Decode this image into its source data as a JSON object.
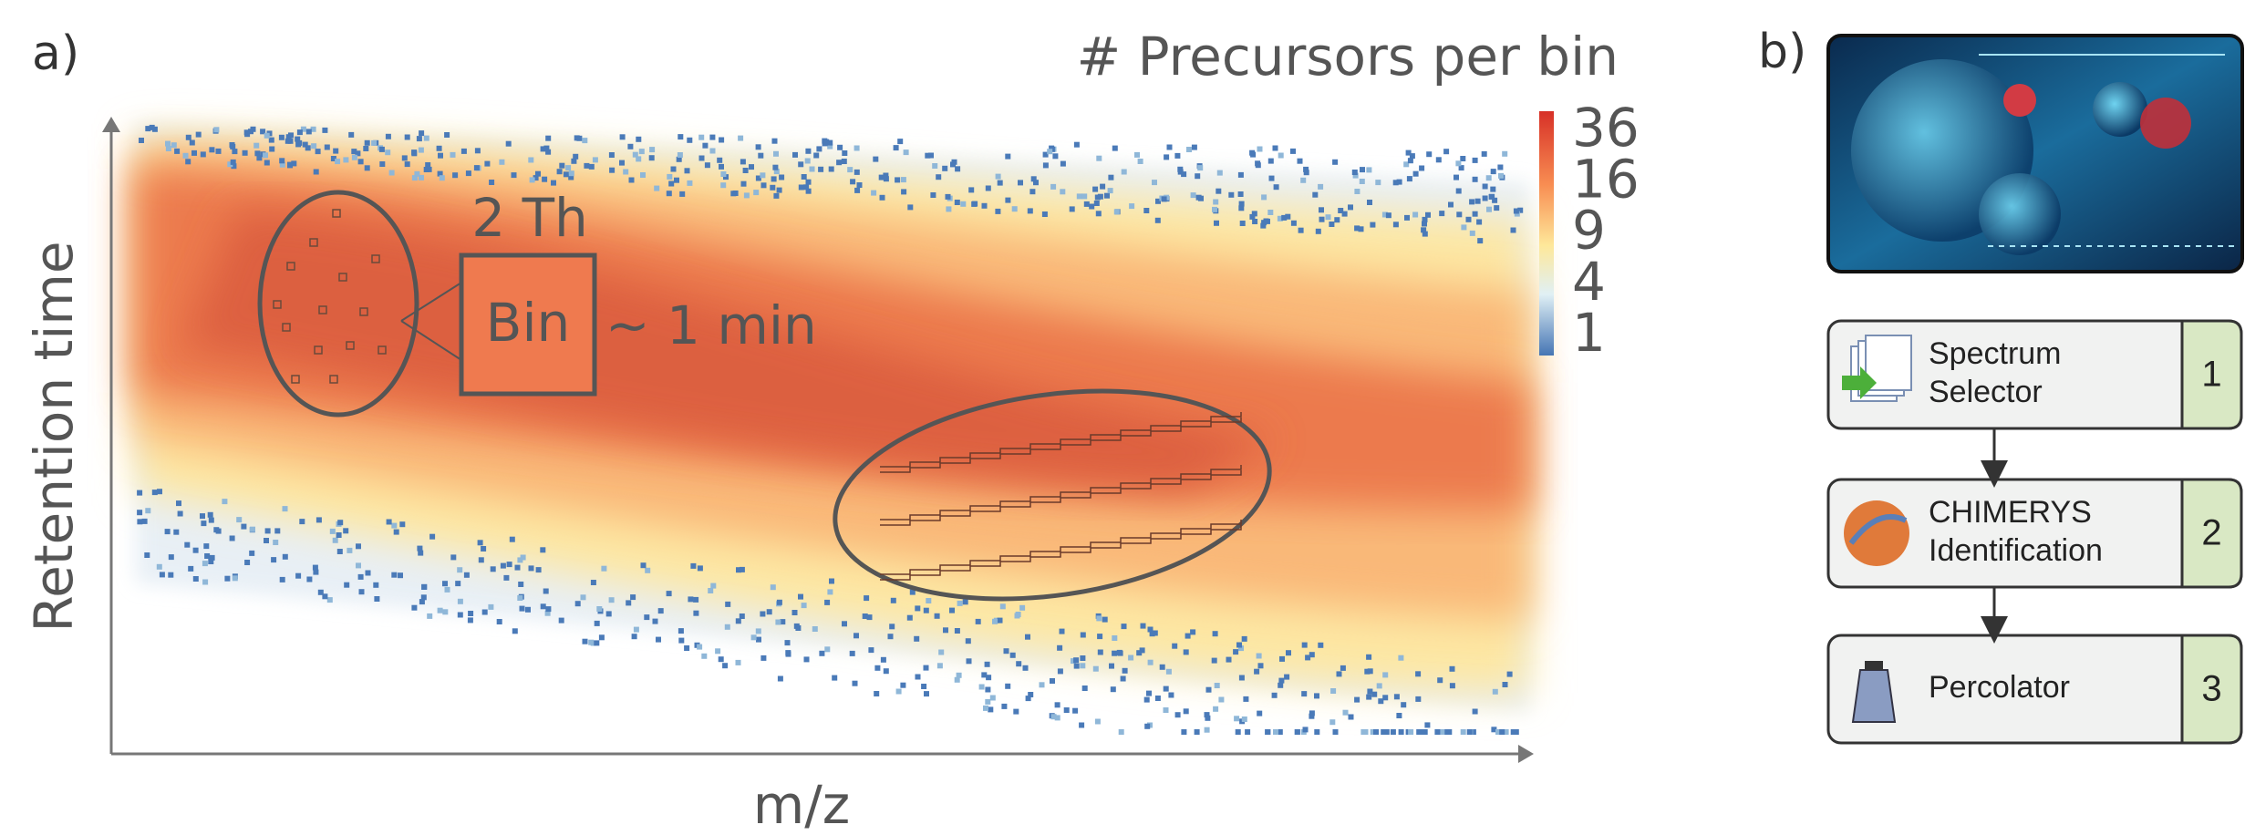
{
  "panel_a": {
    "label": "a)",
    "colorbar_title": "# Precursors per bin",
    "colorbar_ticks": [
      "36",
      "16",
      "9",
      "4",
      "1"
    ],
    "x_label": "m/z",
    "y_label": "Retention time",
    "bin_width": "2 Th",
    "bin_label": "Bin",
    "bin_height": "~ 1 min"
  },
  "panel_b": {
    "label": "b)",
    "steps": [
      {
        "lines": [
          "Spectrum",
          "Selector"
        ],
        "number": 1
      },
      {
        "lines": [
          "CHIMERYS",
          "Identification"
        ],
        "number": 2
      },
      {
        "lines": [
          "Percolator"
        ],
        "number": 3
      }
    ]
  }
}
